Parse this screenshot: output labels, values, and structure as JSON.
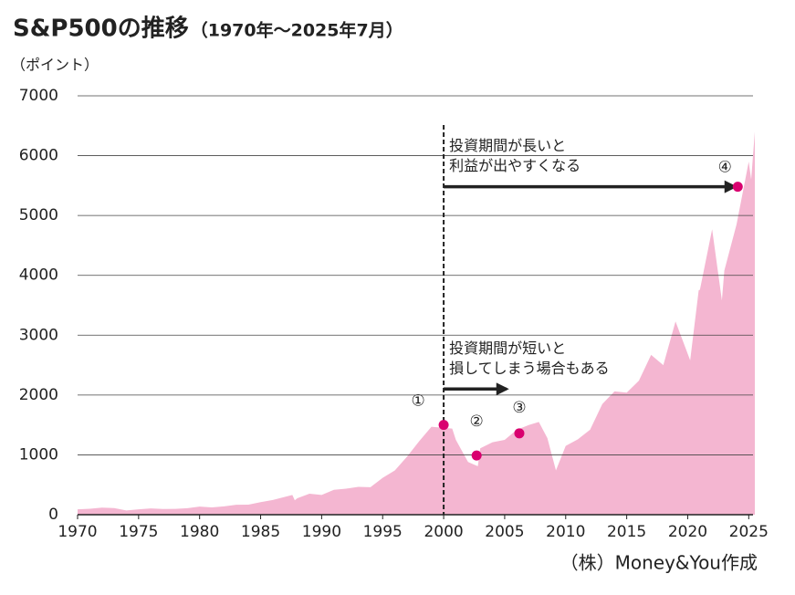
{
  "chart_data": {
    "type": "area",
    "title": "S&P500の推移",
    "subtitle": "（1970年～2025年7月）",
    "y_label": "（ポイント）",
    "source": "（株）Money&You作成",
    "color": "#f4b6d1",
    "point_color": "#d9006f",
    "title_color": "#e4007f",
    "x": [
      1970,
      1971,
      1972,
      1973,
      1974,
      1975,
      1976,
      1977,
      1978,
      1979,
      1980,
      1981,
      1982,
      1983,
      1984,
      1985,
      1986,
      1987.6,
      1987.8,
      1988,
      1989,
      1990,
      1991,
      1992,
      1993,
      1994,
      1995,
      1996,
      1997,
      1998,
      1999,
      2000,
      2000.7,
      2001,
      2002,
      2002.8,
      2003,
      2004,
      2005,
      2006,
      2007,
      2007.8,
      2008.5,
      2009.2,
      2010,
      2011,
      2012,
      2013,
      2014,
      2015,
      2016,
      2017,
      2018,
      2019,
      2020.2,
      2020.9,
      2021,
      2022,
      2022.8,
      2023,
      2024,
      2025,
      2025.2,
      2025.5
    ],
    "values": [
      90,
      100,
      118,
      110,
      70,
      90,
      105,
      95,
      98,
      108,
      135,
      122,
      140,
      165,
      167,
      210,
      245,
      330,
      240,
      275,
      350,
      330,
      415,
      435,
      465,
      460,
      615,
      740,
      970,
      1230,
      1470,
      1450,
      1440,
      1250,
      880,
      810,
      1110,
      1210,
      1250,
      1420,
      1500,
      1550,
      1280,
      740,
      1150,
      1260,
      1420,
      1850,
      2060,
      2040,
      2240,
      2670,
      2500,
      3230,
      2580,
      3750,
      3760,
      4770,
      3580,
      4080,
      4850,
      5900,
      5600,
      6400
    ],
    "xlim": [
      1970,
      2025.5
    ],
    "ylim": [
      0,
      7000
    ],
    "xticks": [
      1970,
      1975,
      1980,
      1985,
      1990,
      1995,
      2000,
      2005,
      2010,
      2015,
      2020,
      2025
    ],
    "yticks": [
      0,
      1000,
      2000,
      3000,
      4000,
      5000,
      6000,
      7000
    ],
    "grid": true,
    "divider_x": 2000,
    "points": [
      {
        "label": "①",
        "x": 2000,
        "value": 1500
      },
      {
        "label": "②",
        "x": 2002.7,
        "value": 990
      },
      {
        "label": "③",
        "x": 2006.2,
        "value": 1360
      },
      {
        "label": "④",
        "x": 2024.1,
        "value": 5480
      }
    ],
    "annotations": [
      {
        "text": [
          "投資期間が長いと",
          "利益が出やすくなる"
        ],
        "x": [
          2000,
          2024
        ],
        "y": 5480
      },
      {
        "text": [
          "投資期間が短いと",
          "損してしまう場合もある"
        ],
        "x": [
          2000,
          2005.3
        ],
        "y": 2100
      }
    ]
  }
}
